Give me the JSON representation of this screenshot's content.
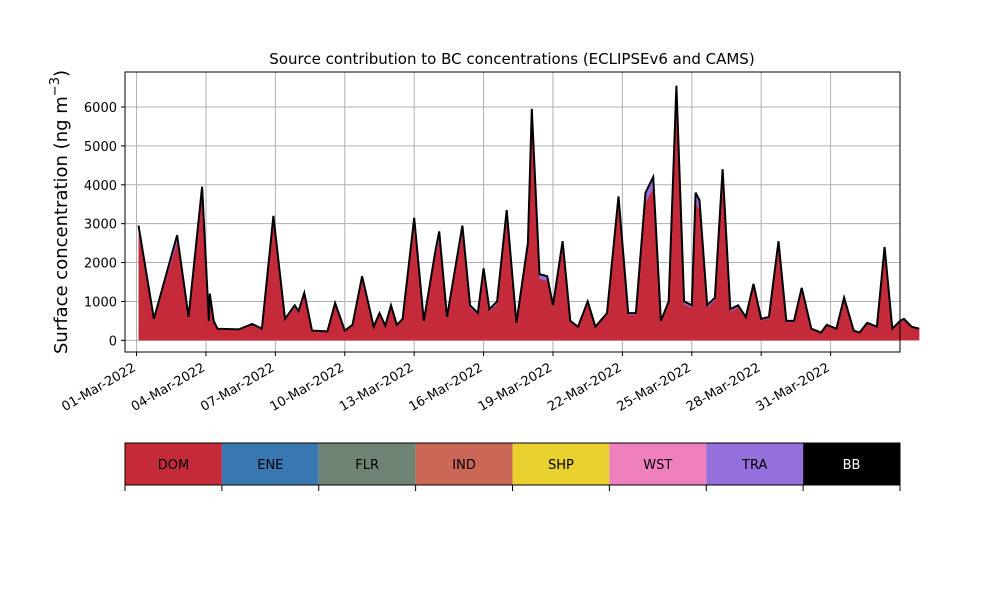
{
  "chart_data": {
    "type": "area",
    "title": "Source contribution to BC concentrations (ECLIPSEv6 and CAMS)",
    "xlabel": "",
    "ylabel_main": "Surface concentration (ng m",
    "ylabel_sup": "−3",
    "ylabel_close": ")",
    "x_start": "2022-03-01",
    "x_end": "2022-04-01",
    "xlim": [
      "2022-02-28T12:00",
      "2022-04-03T00:00"
    ],
    "ylim": [
      -300,
      6900
    ],
    "x_tick_dates": [
      "2022-03-01",
      "2022-03-04",
      "2022-03-07",
      "2022-03-10",
      "2022-03-13",
      "2022-03-16",
      "2022-03-19",
      "2022-03-22",
      "2022-03-25",
      "2022-03-28",
      "2022-03-31"
    ],
    "x_tick_labels": [
      "01-Mar-2022",
      "04-Mar-2022",
      "07-Mar-2022",
      "10-Mar-2022",
      "13-Mar-2022",
      "16-Mar-2022",
      "19-Mar-2022",
      "22-Mar-2022",
      "25-Mar-2022",
      "28-Mar-2022",
      "31-Mar-2022"
    ],
    "y_ticks": [
      0,
      1000,
      2000,
      3000,
      4000,
      5000,
      6000
    ],
    "grid": true,
    "legend_position": "below",
    "total_peaks": [
      [
        "2022-03-01T02:00",
        2950
      ],
      [
        "2022-03-01T18:00",
        550
      ],
      [
        "2022-03-02T18:00",
        2700
      ],
      [
        "2022-03-03T06:00",
        600
      ],
      [
        "2022-03-03T20:00",
        3950
      ],
      [
        "2022-03-04T08:00",
        500
      ],
      [
        "2022-03-04T03:00",
        500
      ],
      [
        "2022-03-04T04:00",
        1200
      ],
      [
        "2022-03-04T12:00",
        300
      ],
      [
        "2022-03-05T10:00",
        280
      ],
      [
        "2022-03-06T00:00",
        420
      ],
      [
        "2022-03-06T10:00",
        300
      ],
      [
        "2022-03-06T22:00",
        3200
      ],
      [
        "2022-03-07T10:00",
        550
      ],
      [
        "2022-03-07T20:00",
        900
      ],
      [
        "2022-03-08T00:00",
        750
      ],
      [
        "2022-03-08T06:00",
        1220
      ],
      [
        "2022-03-08T14:00",
        250
      ],
      [
        "2022-03-09T06:00",
        230
      ],
      [
        "2022-03-09T14:00",
        960
      ],
      [
        "2022-03-10T00:00",
        250
      ],
      [
        "2022-03-10T08:00",
        400
      ],
      [
        "2022-03-10T18:00",
        1650
      ],
      [
        "2022-03-11T06:00",
        350
      ],
      [
        "2022-03-11T12:00",
        700
      ],
      [
        "2022-03-11T18:00",
        380
      ],
      [
        "2022-03-12T00:00",
        900
      ],
      [
        "2022-03-12T06:00",
        400
      ],
      [
        "2022-03-12T12:00",
        550
      ],
      [
        "2022-03-13T00:00",
        3150
      ],
      [
        "2022-03-13T10:00",
        500
      ],
      [
        "2022-03-13T22:00",
        2300
      ],
      [
        "2022-03-14T02:00",
        2800
      ],
      [
        "2022-03-14T10:00",
        600
      ],
      [
        "2022-03-15T02:00",
        2950
      ],
      [
        "2022-03-15T10:00",
        900
      ],
      [
        "2022-03-15T18:00",
        700
      ],
      [
        "2022-03-16T00:00",
        1850
      ],
      [
        "2022-03-16T06:00",
        800
      ],
      [
        "2022-03-16T14:00",
        1000
      ],
      [
        "2022-03-17T00:00",
        3350
      ],
      [
        "2022-03-17T10:00",
        450
      ],
      [
        "2022-03-17T22:00",
        2500
      ],
      [
        "2022-03-18T02:00",
        5950
      ],
      [
        "2022-03-18T10:00",
        1700
      ],
      [
        "2022-03-18T18:00",
        1650
      ],
      [
        "2022-03-19T00:00",
        900
      ],
      [
        "2022-03-19T10:00",
        2550
      ],
      [
        "2022-03-19T18:00",
        500
      ],
      [
        "2022-03-20T02:00",
        350
      ],
      [
        "2022-03-20T12:00",
        1000
      ],
      [
        "2022-03-20T20:00",
        350
      ],
      [
        "2022-03-21T08:00",
        700
      ],
      [
        "2022-03-21T20:00",
        3700
      ],
      [
        "2022-03-22T06:00",
        700
      ],
      [
        "2022-03-22T14:00",
        700
      ],
      [
        "2022-03-23T00:00",
        3800
      ],
      [
        "2022-03-23T08:00",
        4200
      ],
      [
        "2022-03-23T16:00",
        500
      ],
      [
        "2022-03-24T00:00",
        1000
      ],
      [
        "2022-03-24T08:00",
        6550
      ],
      [
        "2022-03-24T16:00",
        1000
      ],
      [
        "2022-03-25T00:00",
        900
      ],
      [
        "2022-03-25T04:00",
        3800
      ],
      [
        "2022-03-25T08:00",
        3600
      ],
      [
        "2022-03-25T16:00",
        900
      ],
      [
        "2022-03-26T00:00",
        1100
      ],
      [
        "2022-03-26T08:00",
        4400
      ],
      [
        "2022-03-26T16:00",
        800
      ],
      [
        "2022-03-27T00:00",
        900
      ],
      [
        "2022-03-27T08:00",
        600
      ],
      [
        "2022-03-27T16:00",
        1450
      ],
      [
        "2022-03-28T00:00",
        550
      ],
      [
        "2022-03-28T08:00",
        600
      ],
      [
        "2022-03-28T18:00",
        2550
      ],
      [
        "2022-03-29T02:00",
        500
      ],
      [
        "2022-03-29T10:00",
        500
      ],
      [
        "2022-03-29T18:00",
        1350
      ],
      [
        "2022-03-30T04:00",
        300
      ],
      [
        "2022-03-30T14:00",
        200
      ],
      [
        "2022-03-30T20:00",
        400
      ],
      [
        "2022-03-31T06:00",
        300
      ],
      [
        "2022-03-31T14:00",
        1100
      ],
      [
        "2022-04-01T00:00",
        250
      ],
      [
        "2022-04-01T06:00",
        200
      ],
      [
        "2022-04-01T14:00",
        450
      ],
      [
        "2022-04-02T00:00",
        350
      ],
      [
        "2022-04-02T08:00",
        2400
      ],
      [
        "2022-04-02T16:00",
        300
      ],
      [
        "2022-04-03T00:00",
        500
      ],
      [
        "2022-04-03T04:00",
        550
      ],
      [
        "2022-04-03T12:00",
        350
      ],
      [
        "2022-04-03T20:00",
        300
      ]
    ],
    "series": [
      {
        "name": "DOM",
        "color": "#c52a3a",
        "text_color": "#000000"
      },
      {
        "name": "ENE",
        "color": "#3a78b4",
        "text_color": "#000000"
      },
      {
        "name": "FLR",
        "color": "#6e8373",
        "text_color": "#000000"
      },
      {
        "name": "IND",
        "color": "#cb6757",
        "text_color": "#000000"
      },
      {
        "name": "SHP",
        "color": "#e8d02e",
        "text_color": "#000000"
      },
      {
        "name": "WST",
        "color": "#f07fbe",
        "text_color": "#000000"
      },
      {
        "name": "TRA",
        "color": "#9470dc",
        "text_color": "#000000"
      },
      {
        "name": "BB",
        "color": "#000000",
        "text_color": "#ffffff"
      }
    ],
    "note_colors": {
      "grid": "#b0b0b0",
      "axis": "#000000"
    }
  }
}
